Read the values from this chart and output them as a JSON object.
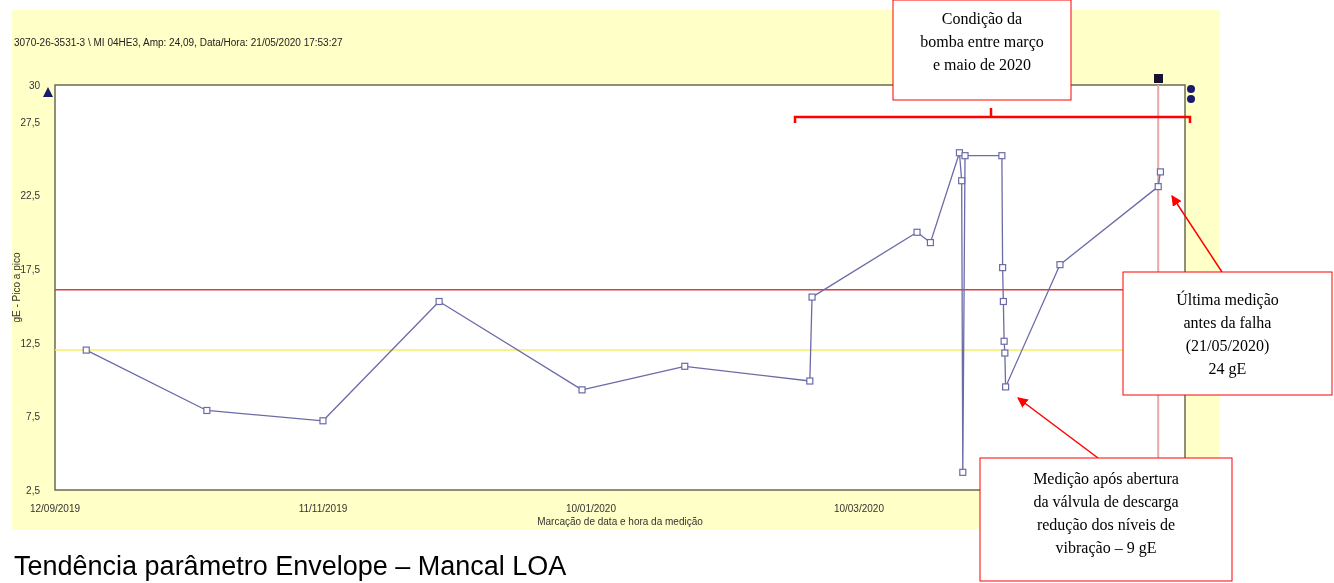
{
  "chart_data": {
    "type": "line",
    "title": "Tendência parâmetro Envelope – Mancal LOA",
    "subtitle": "3070-26-3531-3 \\ MI 04HE3, Amp: 24,09, Data/Hora: 21/05/2020 17:53:27",
    "xlabel": "Marcação de data e hora da medição",
    "ylabel": "gE - Pico a pico",
    "x": [
      "2019-09-19",
      "2019-10-16",
      "2019-11-11",
      "2019-12-07",
      "2020-01-08",
      "2020-01-31",
      "2020-02-28T00:00",
      "2020-02-28T12:00",
      "2020-03-23",
      "2020-03-26",
      "2020-04-01T12:00",
      "2020-04-02T00:00",
      "2020-04-02T06:00",
      "2020-04-02T18:00",
      "2020-04-11T00:00",
      "2020-04-11T04:00",
      "2020-04-11T08:00",
      "2020-04-11T12:00",
      "2020-04-11T16:00",
      "2020-04-11T20:00",
      "2020-04-24",
      "2020-05-16T00:00",
      "2020-05-16T12:00"
    ],
    "series": [
      {
        "color": "#6b6ba8",
        "values": [
          12.0,
          7.9,
          7.2,
          15.3,
          9.3,
          10.9,
          9.9,
          15.6,
          20.0,
          19.3,
          25.4,
          23.5,
          3.7,
          25.2,
          25.2,
          17.6,
          15.3,
          12.6,
          11.8,
          9.5,
          17.8,
          23.1,
          24.1
        ]
      }
    ],
    "marker": "square",
    "xlim": [
      "2019-09-12",
      "2020-05-22"
    ],
    "xticks": [
      {
        "value": "2019-09-12",
        "label": "12/09/2019"
      },
      {
        "value": "2019-11-11",
        "label": "11/11/2019"
      },
      {
        "value": "2020-01-10",
        "label": "10/01/2020"
      },
      {
        "value": "2020-03-10",
        "label": "10/03/2020"
      }
    ],
    "ylim": [
      2.5,
      30
    ],
    "yticks": [
      {
        "value": 2.5,
        "label": "2,5"
      },
      {
        "value": 7.5,
        "label": "7,5"
      },
      {
        "value": 12.5,
        "label": "12,5"
      },
      {
        "value": 17.5,
        "label": "17,5"
      },
      {
        "value": 22.5,
        "label": "22,5"
      },
      {
        "value": 27.5,
        "label": "27,5"
      },
      30
    ],
    "ref_lines": [
      {
        "axis": "y",
        "value": 16.1,
        "color": "#e03c3c"
      },
      {
        "axis": "y",
        "value": 12.0,
        "color": "#f0f060"
      },
      {
        "axis": "x",
        "value": "2020-05-16",
        "color": "#e8a8a8"
      }
    ],
    "grid": false,
    "annotations": [
      "Condição da\nbomba entre março\ne maio de 2020",
      "Última medição\nantes da falha\n(21/05/2020)\n24 gE",
      "Medição após abertura\nda válvula de descarga\nredução dos níveis de\nvibração – 9 gE"
    ]
  }
}
